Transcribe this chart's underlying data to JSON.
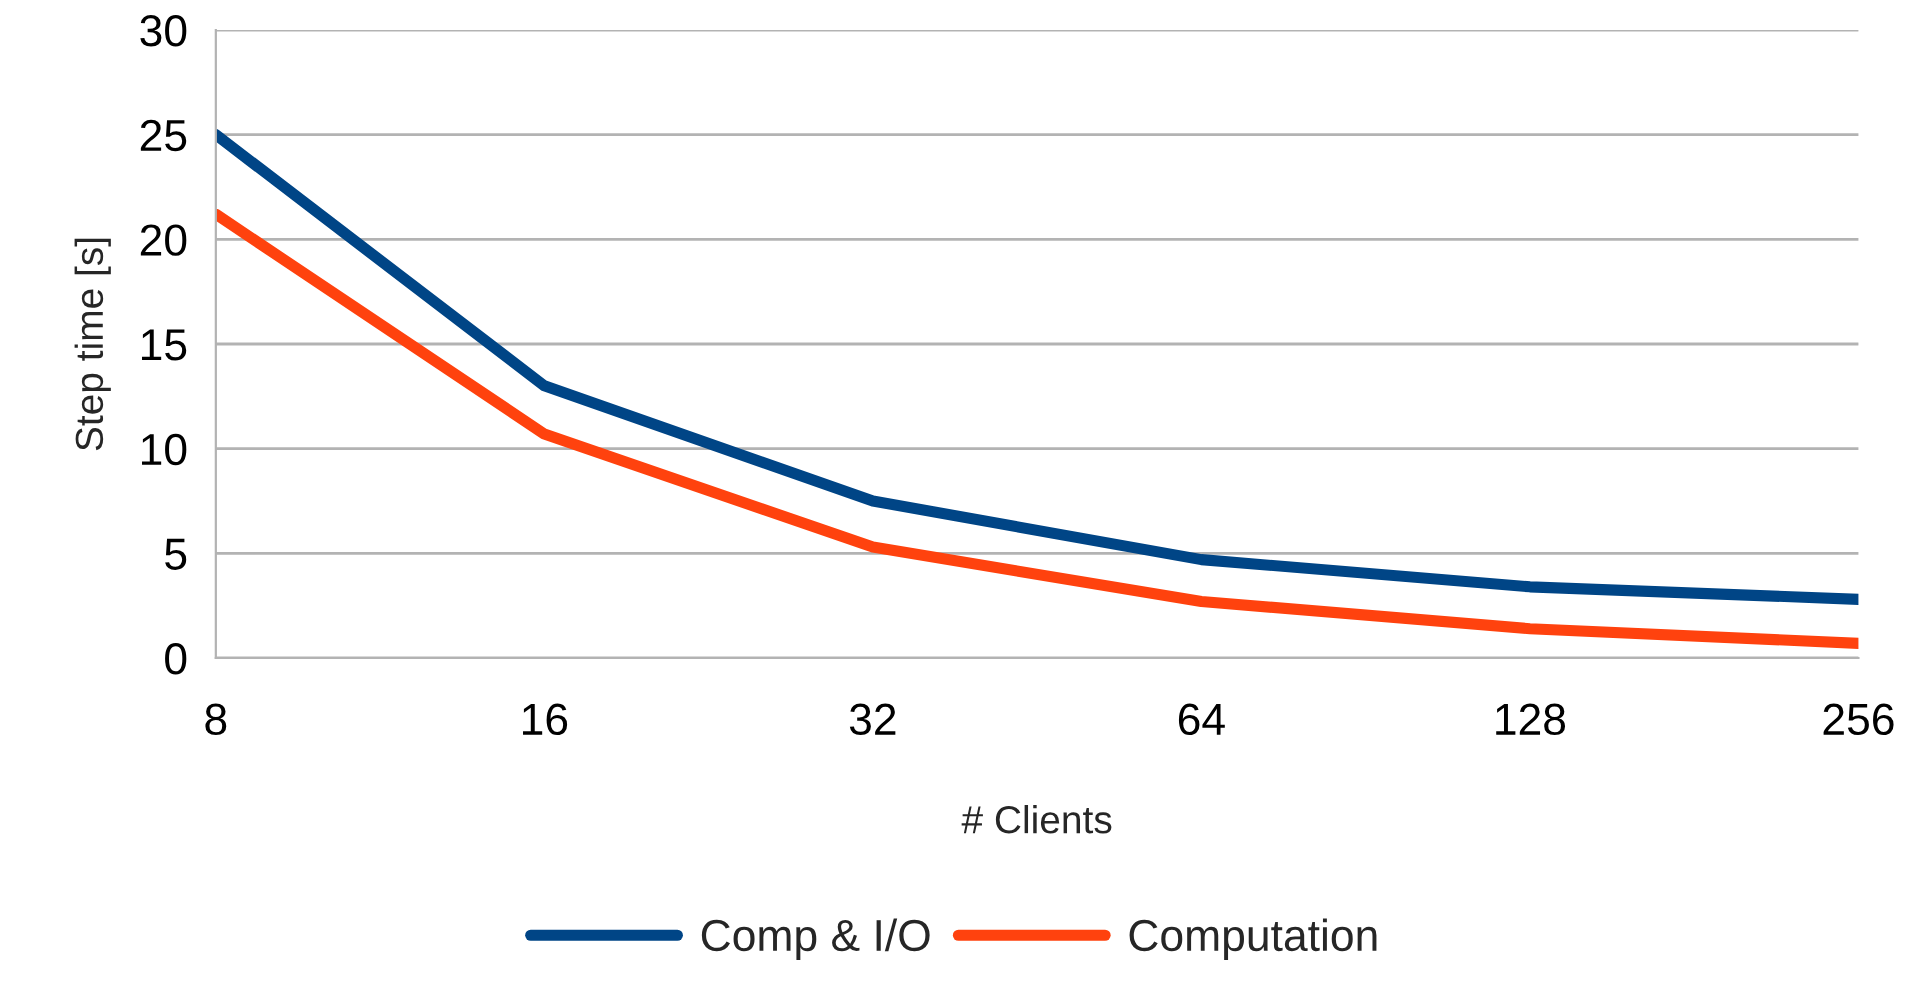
{
  "chart_data": {
    "type": "line",
    "xlabel": "# Clients",
    "ylabel": "Step time [s]",
    "categories": [
      "8",
      "16",
      "32",
      "64",
      "128",
      "256"
    ],
    "series": [
      {
        "name": "Comp & I/O",
        "color": "#004586",
        "values": [
          25.0,
          13.0,
          7.5,
          4.7,
          3.4,
          2.8
        ]
      },
      {
        "name": "Computation",
        "color": "#ff420e",
        "values": [
          21.2,
          10.7,
          5.3,
          2.7,
          1.4,
          0.7
        ]
      }
    ],
    "ylim": [
      0,
      30
    ],
    "yticks": [
      0,
      5,
      10,
      15,
      20,
      25,
      30
    ],
    "grid": "y",
    "legend": "bottom",
    "marker": "none",
    "line_style": "solid"
  }
}
